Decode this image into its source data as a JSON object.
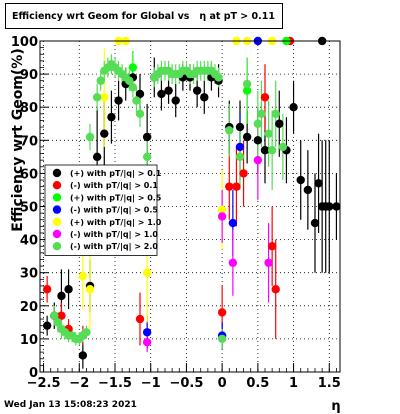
{
  "window": {
    "title": "Efficiency wrt Geom for Global vs   η at pT > 0.11",
    "timestamp": "Wed Jan 13 15:08:23 2021"
  },
  "chart_data": {
    "type": "scatter",
    "title": "Efficiency wrt Geom for Global vs   η at pT > 0.11",
    "xlabel": "η",
    "ylabel": "Efficiency wrt Geom(%)",
    "xlim": [
      -2.55,
      1.65
    ],
    "ylim": [
      0,
      100
    ],
    "x_ticks": [
      -2.5,
      -2,
      -1.5,
      -1,
      -0.5,
      0,
      0.5,
      1,
      1.5
    ],
    "x_tick_labels": [
      "−2.5",
      "−2",
      "−1.5",
      "−1",
      "−0.5",
      "0",
      "0.5",
      "1",
      "1.5"
    ],
    "y_ticks": [
      0,
      10,
      20,
      30,
      40,
      50,
      60,
      70,
      80,
      90,
      100
    ],
    "grid": true,
    "legend_position": "left-middle",
    "series": [
      {
        "name": "(+) with pT/|q| > 0.1",
        "color": "#000000",
        "points": [
          {
            "x": -2.45,
            "y": 14,
            "err": 3
          },
          {
            "x": -2.35,
            "y": 17,
            "err": 4
          },
          {
            "x": -2.25,
            "y": 23,
            "err": 8
          },
          {
            "x": -2.15,
            "y": 25,
            "err": 6
          },
          {
            "x": -1.95,
            "y": 5,
            "err": 4
          },
          {
            "x": -1.85,
            "y": 26,
            "err": 8
          },
          {
            "x": -1.75,
            "y": 65,
            "err": 15
          },
          {
            "x": -1.65,
            "y": 72,
            "err": 10
          },
          {
            "x": -1.55,
            "y": 77,
            "err": 8
          },
          {
            "x": -1.45,
            "y": 82,
            "err": 6
          },
          {
            "x": -1.35,
            "y": 87,
            "err": 5
          },
          {
            "x": -1.25,
            "y": 89,
            "err": 4
          },
          {
            "x": -1.15,
            "y": 84,
            "err": 6
          },
          {
            "x": -1.05,
            "y": 71,
            "err": 10
          },
          {
            "x": -0.95,
            "y": 89,
            "err": 6
          },
          {
            "x": -0.85,
            "y": 84,
            "err": 5
          },
          {
            "x": -0.75,
            "y": 85,
            "err": 4
          },
          {
            "x": -0.65,
            "y": 82,
            "err": 5
          },
          {
            "x": -0.55,
            "y": 89,
            "err": 4
          },
          {
            "x": -0.45,
            "y": 89,
            "err": 4
          },
          {
            "x": -0.35,
            "y": 85,
            "err": 5
          },
          {
            "x": -0.25,
            "y": 83,
            "err": 5
          },
          {
            "x": -0.15,
            "y": 89,
            "err": 4
          },
          {
            "x": -0.05,
            "y": 88,
            "err": 5
          },
          {
            "x": 0.1,
            "y": 74,
            "err": 8
          },
          {
            "x": 0.25,
            "y": 74,
            "err": 8
          },
          {
            "x": 0.35,
            "y": 71,
            "err": 8
          },
          {
            "x": 0.5,
            "y": 70,
            "err": 10
          },
          {
            "x": 0.6,
            "y": 67,
            "err": 10
          },
          {
            "x": 0.8,
            "y": 75,
            "err": 10
          },
          {
            "x": 0.9,
            "y": 67,
            "err": 10
          },
          {
            "x": 1.0,
            "y": 80,
            "err": 8
          },
          {
            "x": 1.1,
            "y": 58,
            "err": 12
          },
          {
            "x": 1.2,
            "y": 55,
            "err": 12
          },
          {
            "x": 1.3,
            "y": 45,
            "err": 15
          },
          {
            "x": 1.35,
            "y": 57,
            "err": 15
          },
          {
            "x": 1.4,
            "y": 50,
            "err": 20
          },
          {
            "x": 1.45,
            "y": 50,
            "err": 20
          },
          {
            "x": 1.5,
            "y": 50,
            "err": 20
          },
          {
            "x": 1.6,
            "y": 50,
            "err": 10
          },
          {
            "x": 1.4,
            "y": 100,
            "err": 0
          }
        ]
      },
      {
        "name": "(-) with pT/|q| > 0.1",
        "color": "#ff0000",
        "points": [
          {
            "x": -2.45,
            "y": 25,
            "err": 4
          },
          {
            "x": -2.25,
            "y": 17,
            "err": 4
          },
          {
            "x": -2.15,
            "y": 13,
            "err": 3
          },
          {
            "x": -1.95,
            "y": 11,
            "err": 3
          },
          {
            "x": -1.15,
            "y": 16,
            "err": 8
          },
          {
            "x": 0.0,
            "y": 18,
            "err": 8
          },
          {
            "x": 0.1,
            "y": 56,
            "err": 10
          },
          {
            "x": 0.2,
            "y": 56,
            "err": 12
          },
          {
            "x": 0.3,
            "y": 60,
            "err": 10
          },
          {
            "x": 0.6,
            "y": 83,
            "err": 10
          },
          {
            "x": 0.7,
            "y": 38,
            "err": 12
          },
          {
            "x": 0.75,
            "y": 25,
            "err": 15
          },
          {
            "x": 0.95,
            "y": 100,
            "err": 0
          }
        ]
      },
      {
        "name": "(+) with pT/|q| > 0.5",
        "color": "#00ff00",
        "points": [
          {
            "x": -1.25,
            "y": 92,
            "err": 5
          },
          {
            "x": 0.35,
            "y": 85,
            "err": 10
          },
          {
            "x": 0.9,
            "y": 100,
            "err": 0
          }
        ]
      },
      {
        "name": "(-) with pT/|q| > 0.5",
        "color": "#0000ff",
        "points": [
          {
            "x": -1.05,
            "y": 12,
            "err": 5
          },
          {
            "x": 0.0,
            "y": 11,
            "err": 4
          },
          {
            "x": 0.15,
            "y": 45,
            "err": 10
          },
          {
            "x": 0.25,
            "y": 68,
            "err": 10
          },
          {
            "x": 0.5,
            "y": 100,
            "err": 0
          }
        ]
      },
      {
        "name": "(+) with pT/|q| > 1.0",
        "color": "#ffff00",
        "points": [
          {
            "x": -1.95,
            "y": 29,
            "err": 10
          },
          {
            "x": -1.85,
            "y": 25,
            "err": 12
          },
          {
            "x": -1.65,
            "y": 83,
            "err": 15
          },
          {
            "x": -1.45,
            "y": 100,
            "err": 0
          },
          {
            "x": -1.35,
            "y": 100,
            "err": 0
          },
          {
            "x": -1.05,
            "y": 30,
            "err": 15
          },
          {
            "x": 0.0,
            "y": 49,
            "err": 12
          },
          {
            "x": 0.2,
            "y": 100,
            "err": 0
          },
          {
            "x": 0.35,
            "y": 100,
            "err": 0
          },
          {
            "x": 0.7,
            "y": 100,
            "err": 0
          }
        ]
      },
      {
        "name": "(-) with pT/|q| > 1.0",
        "color": "#ff00ff",
        "points": [
          {
            "x": -1.05,
            "y": 9,
            "err": 3
          },
          {
            "x": 0.0,
            "y": 47,
            "err": 8
          },
          {
            "x": 0.15,
            "y": 33,
            "err": 10
          },
          {
            "x": 0.5,
            "y": 64,
            "err": 12
          },
          {
            "x": 0.65,
            "y": 33,
            "err": 12
          }
        ]
      },
      {
        "name": "(-) with pT/|q| > 2.0",
        "color": "#55dd55",
        "points": [
          {
            "x": -2.35,
            "y": 17,
            "err": 3
          },
          {
            "x": -2.3,
            "y": 15,
            "err": 3
          },
          {
            "x": -2.25,
            "y": 13,
            "err": 3
          },
          {
            "x": -2.2,
            "y": 12,
            "err": 2
          },
          {
            "x": -2.15,
            "y": 11,
            "err": 2
          },
          {
            "x": -2.1,
            "y": 11,
            "err": 2
          },
          {
            "x": -2.05,
            "y": 10,
            "err": 2
          },
          {
            "x": -2.0,
            "y": 10,
            "err": 2
          },
          {
            "x": -1.95,
            "y": 11,
            "err": 2
          },
          {
            "x": -1.9,
            "y": 12,
            "err": 2
          },
          {
            "x": -1.85,
            "y": 71,
            "err": 4
          },
          {
            "x": -1.75,
            "y": 83,
            "err": 4
          },
          {
            "x": -1.7,
            "y": 88,
            "err": 3
          },
          {
            "x": -1.65,
            "y": 91,
            "err": 3
          },
          {
            "x": -1.6,
            "y": 92,
            "err": 3
          },
          {
            "x": -1.55,
            "y": 93,
            "err": 3
          },
          {
            "x": -1.5,
            "y": 92,
            "err": 3
          },
          {
            "x": -1.45,
            "y": 91,
            "err": 3
          },
          {
            "x": -1.4,
            "y": 90,
            "err": 3
          },
          {
            "x": -1.35,
            "y": 89,
            "err": 3
          },
          {
            "x": -1.3,
            "y": 88,
            "err": 3
          },
          {
            "x": -1.25,
            "y": 86,
            "err": 3
          },
          {
            "x": -1.2,
            "y": 82,
            "err": 4
          },
          {
            "x": -1.15,
            "y": 78,
            "err": 4
          },
          {
            "x": -1.05,
            "y": 65,
            "err": 6
          },
          {
            "x": -0.95,
            "y": 89,
            "err": 3
          },
          {
            "x": -0.9,
            "y": 90,
            "err": 3
          },
          {
            "x": -0.85,
            "y": 91,
            "err": 3
          },
          {
            "x": -0.8,
            "y": 91,
            "err": 3
          },
          {
            "x": -0.75,
            "y": 91,
            "err": 3
          },
          {
            "x": -0.7,
            "y": 90,
            "err": 3
          },
          {
            "x": -0.65,
            "y": 90,
            "err": 3
          },
          {
            "x": -0.6,
            "y": 90,
            "err": 3
          },
          {
            "x": -0.55,
            "y": 91,
            "err": 3
          },
          {
            "x": -0.5,
            "y": 91,
            "err": 3
          },
          {
            "x": -0.45,
            "y": 90,
            "err": 3
          },
          {
            "x": -0.4,
            "y": 90,
            "err": 3
          },
          {
            "x": -0.35,
            "y": 91,
            "err": 3
          },
          {
            "x": -0.3,
            "y": 91,
            "err": 3
          },
          {
            "x": -0.25,
            "y": 91,
            "err": 3
          },
          {
            "x": -0.2,
            "y": 91,
            "err": 3
          },
          {
            "x": -0.15,
            "y": 91,
            "err": 3
          },
          {
            "x": -0.1,
            "y": 90,
            "err": 3
          },
          {
            "x": -0.05,
            "y": 89,
            "err": 3
          },
          {
            "x": 0.0,
            "y": 10,
            "err": 3
          },
          {
            "x": 0.1,
            "y": 73,
            "err": 8
          },
          {
            "x": 0.25,
            "y": 65,
            "err": 10
          },
          {
            "x": 0.35,
            "y": 87,
            "err": 8
          },
          {
            "x": 0.5,
            "y": 75,
            "err": 10
          },
          {
            "x": 0.55,
            "y": 78,
            "err": 10
          },
          {
            "x": 0.65,
            "y": 72,
            "err": 10
          },
          {
            "x": 0.7,
            "y": 67,
            "err": 12
          },
          {
            "x": 0.75,
            "y": 78,
            "err": 10
          },
          {
            "x": 0.85,
            "y": 68,
            "err": 10
          }
        ]
      }
    ]
  }
}
